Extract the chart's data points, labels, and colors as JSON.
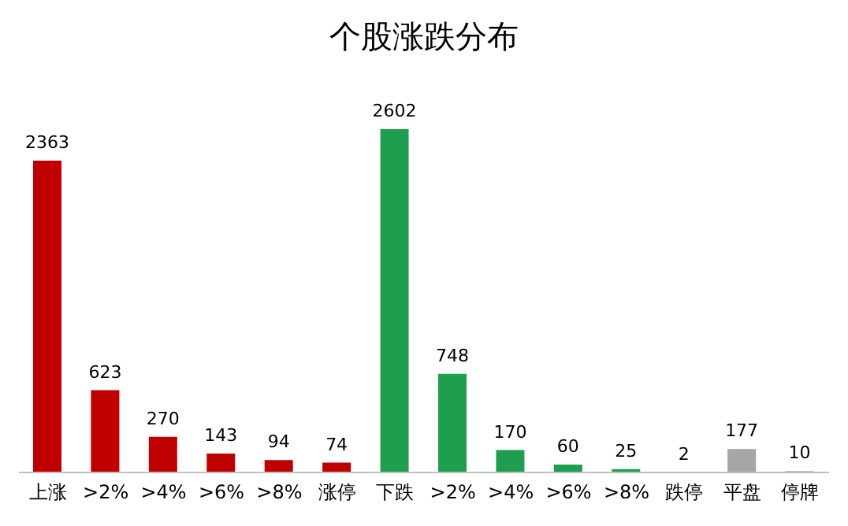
{
  "chart_data": {
    "type": "bar",
    "title": "个股涨跌分布",
    "categories": [
      "上涨",
      ">2%",
      ">4%",
      ">6%",
      ">8%",
      "涨停",
      "下跌",
      ">2%",
      ">4%",
      ">6%",
      ">8%",
      "跌停",
      "平盘",
      "停牌"
    ],
    "values": [
      2363,
      623,
      270,
      143,
      94,
      74,
      2602,
      748,
      170,
      60,
      25,
      2,
      177,
      10
    ],
    "colors": [
      "#c00000",
      "#c00000",
      "#c00000",
      "#c00000",
      "#c00000",
      "#c00000",
      "#1e9e4f",
      "#1e9e4f",
      "#1e9e4f",
      "#1e9e4f",
      "#1e9e4f",
      "#1e9e4f",
      "#a6a6a6",
      "#a6a6a6"
    ],
    "data_labels": true
  }
}
